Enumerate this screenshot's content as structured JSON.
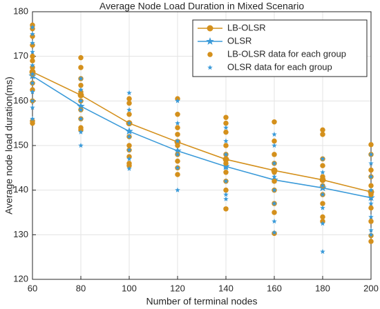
{
  "chart_data": {
    "type": "line",
    "title": "Average Node Load Duration in Mixed Scenario",
    "xlabel": "Number of terminal nodes",
    "ylabel": "Average node load duration(ms)",
    "x": [
      60,
      80,
      100,
      120,
      140,
      160,
      180,
      200
    ],
    "xlim": [
      60,
      200
    ],
    "xticks": [
      60,
      80,
      100,
      120,
      140,
      160,
      180,
      200
    ],
    "ylim": [
      120,
      180
    ],
    "yticks": [
      120,
      130,
      140,
      150,
      160,
      170,
      180
    ],
    "grid": true,
    "legend": "upper right",
    "series": [
      {
        "name": "LB-OLSR",
        "color": "#d4901c",
        "mode": "line",
        "marker": "o",
        "values": [
          166.5,
          161.3,
          155,
          150.8,
          146.9,
          144.4,
          142.3,
          139.6
        ]
      },
      {
        "name": "OLSR",
        "color": "#3a9ad9",
        "mode": "line",
        "marker": "*",
        "values": [
          165.6,
          158.8,
          153.2,
          148.8,
          145.3,
          142.3,
          140.5,
          138.3
        ]
      },
      {
        "name": "LB-OLSR data for each group",
        "color": "#d4901c",
        "mode": "scatter",
        "marker": "o",
        "x": [
          60,
          60,
          60,
          60,
          60,
          60,
          60,
          60,
          60,
          60,
          60,
          60,
          60,
          80,
          80,
          80,
          80,
          80,
          80,
          80,
          80,
          80,
          80,
          100,
          100,
          100,
          100,
          100,
          100,
          100,
          100,
          100,
          100,
          120,
          120,
          120,
          120,
          120,
          120,
          120,
          120,
          120,
          140,
          140,
          140,
          140,
          140,
          140,
          140,
          140,
          140,
          140,
          160,
          160,
          160,
          160,
          160,
          160,
          160,
          160,
          160,
          160,
          180,
          180,
          180,
          180,
          180,
          180,
          180,
          180,
          180,
          180,
          200,
          200,
          200,
          200,
          200,
          200,
          200,
          200,
          200,
          200
        ],
        "values": [
          177,
          176.2,
          174.5,
          172.5,
          170,
          169,
          167.5,
          166,
          164,
          162.5,
          160,
          155.5,
          155,
          169.7,
          167.5,
          165,
          163.5,
          162,
          160,
          158,
          156,
          154,
          153.5,
          160.5,
          159.5,
          157,
          155,
          152,
          150,
          149,
          147.5,
          146,
          145.5,
          160.5,
          157,
          154,
          152.5,
          150,
          148,
          146.5,
          145,
          143.5,
          156.3,
          155,
          153,
          150,
          148,
          146,
          144,
          142,
          140,
          135.8,
          155.3,
          151,
          148,
          146,
          144,
          142,
          140,
          137,
          135,
          130.3,
          153.5,
          152.5,
          147,
          145.5,
          143,
          141,
          139,
          137,
          134,
          133,
          150.2,
          148,
          144.5,
          143,
          141,
          139,
          136,
          133,
          129.8,
          128.5
        ]
      },
      {
        "name": "OLSR data for each group",
        "color": "#3a9ad9",
        "mode": "scatter",
        "marker": "*",
        "x": [
          60,
          60,
          60,
          60,
          60,
          60,
          60,
          60,
          60,
          60,
          60,
          80,
          80,
          80,
          80,
          80,
          80,
          80,
          100,
          100,
          100,
          100,
          100,
          100,
          100,
          120,
          120,
          120,
          120,
          120,
          120,
          140,
          140,
          140,
          140,
          140,
          140,
          140,
          160,
          160,
          160,
          160,
          160,
          160,
          160,
          160,
          180,
          180,
          180,
          180,
          180,
          180,
          180,
          200,
          200,
          200,
          200,
          200,
          200,
          200,
          200
        ],
        "values": [
          176.5,
          175,
          173,
          171,
          168,
          166,
          164,
          162,
          160,
          158.5,
          156,
          165,
          162.5,
          160,
          158,
          156,
          153,
          150,
          161.8,
          158,
          155,
          152,
          149,
          147,
          144.8,
          160,
          155,
          151,
          148,
          145,
          140,
          154,
          151,
          148,
          145,
          142,
          139,
          138,
          152.5,
          150,
          146,
          143,
          140,
          137,
          133,
          130.5,
          147,
          144,
          141,
          139,
          136,
          132.5,
          126.2,
          148,
          146,
          143,
          140,
          137,
          134,
          131,
          130
        ]
      }
    ]
  }
}
